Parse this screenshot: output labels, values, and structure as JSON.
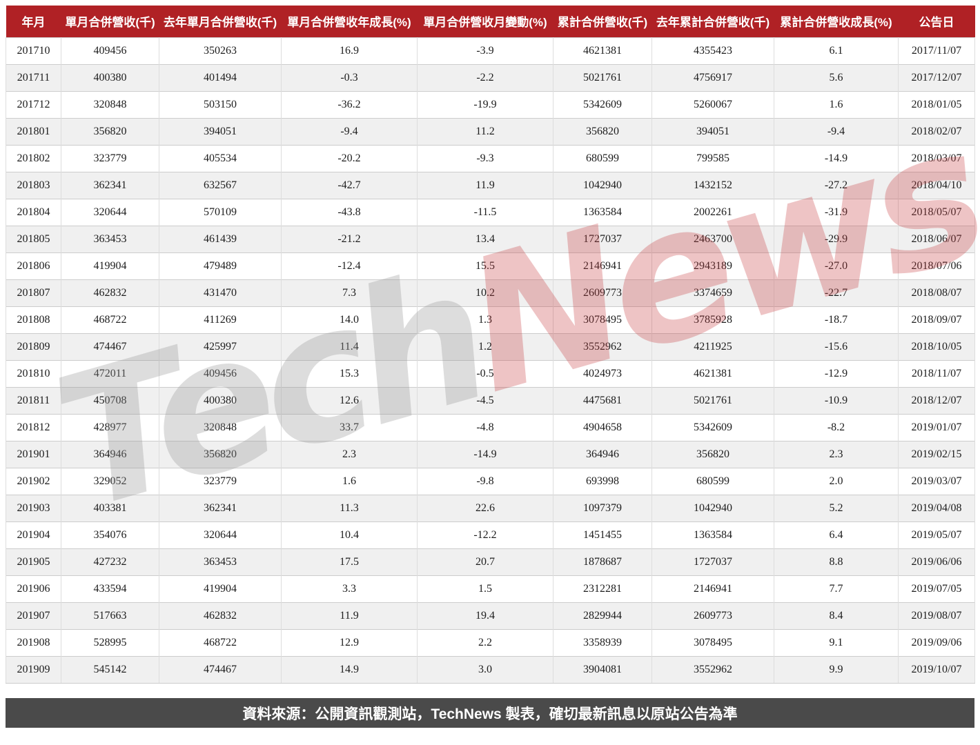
{
  "chart_data": {
    "type": "table",
    "title": "月合併營收表 (TechNews)",
    "columns": [
      "年月",
      "單月合併營收(千)",
      "去年單月合併營收(千)",
      "單月合併營收年成長(%)",
      "單月合併營收月變動(%)",
      "累計合併營收(千)",
      "去年累計合併營收(千)",
      "累計合併營收成長(%)",
      "公告日"
    ],
    "rows": [
      [
        "201710",
        "409456",
        "350263",
        "16.9",
        "-3.9",
        "4621381",
        "4355423",
        "6.1",
        "2017/11/07"
      ],
      [
        "201711",
        "400380",
        "401494",
        "-0.3",
        "-2.2",
        "5021761",
        "4756917",
        "5.6",
        "2017/12/07"
      ],
      [
        "201712",
        "320848",
        "503150",
        "-36.2",
        "-19.9",
        "5342609",
        "5260067",
        "1.6",
        "2018/01/05"
      ],
      [
        "201801",
        "356820",
        "394051",
        "-9.4",
        "11.2",
        "356820",
        "394051",
        "-9.4",
        "2018/02/07"
      ],
      [
        "201802",
        "323779",
        "405534",
        "-20.2",
        "-9.3",
        "680599",
        "799585",
        "-14.9",
        "2018/03/07"
      ],
      [
        "201803",
        "362341",
        "632567",
        "-42.7",
        "11.9",
        "1042940",
        "1432152",
        "-27.2",
        "2018/04/10"
      ],
      [
        "201804",
        "320644",
        "570109",
        "-43.8",
        "-11.5",
        "1363584",
        "2002261",
        "-31.9",
        "2018/05/07"
      ],
      [
        "201805",
        "363453",
        "461439",
        "-21.2",
        "13.4",
        "1727037",
        "2463700",
        "-29.9",
        "2018/06/07"
      ],
      [
        "201806",
        "419904",
        "479489",
        "-12.4",
        "15.5",
        "2146941",
        "2943189",
        "-27.0",
        "2018/07/06"
      ],
      [
        "201807",
        "462832",
        "431470",
        "7.3",
        "10.2",
        "2609773",
        "3374659",
        "-22.7",
        "2018/08/07"
      ],
      [
        "201808",
        "468722",
        "411269",
        "14.0",
        "1.3",
        "3078495",
        "3785928",
        "-18.7",
        "2018/09/07"
      ],
      [
        "201809",
        "474467",
        "425997",
        "11.4",
        "1.2",
        "3552962",
        "4211925",
        "-15.6",
        "2018/10/05"
      ],
      [
        "201810",
        "472011",
        "409456",
        "15.3",
        "-0.5",
        "4024973",
        "4621381",
        "-12.9",
        "2018/11/07"
      ],
      [
        "201811",
        "450708",
        "400380",
        "12.6",
        "-4.5",
        "4475681",
        "5021761",
        "-10.9",
        "2018/12/07"
      ],
      [
        "201812",
        "428977",
        "320848",
        "33.7",
        "-4.8",
        "4904658",
        "5342609",
        "-8.2",
        "2019/01/07"
      ],
      [
        "201901",
        "364946",
        "356820",
        "2.3",
        "-14.9",
        "364946",
        "356820",
        "2.3",
        "2019/02/15"
      ],
      [
        "201902",
        "329052",
        "323779",
        "1.6",
        "-9.8",
        "693998",
        "680599",
        "2.0",
        "2019/03/07"
      ],
      [
        "201903",
        "403381",
        "362341",
        "11.3",
        "22.6",
        "1097379",
        "1042940",
        "5.2",
        "2019/04/08"
      ],
      [
        "201904",
        "354076",
        "320644",
        "10.4",
        "-12.2",
        "1451455",
        "1363584",
        "6.4",
        "2019/05/07"
      ],
      [
        "201905",
        "427232",
        "363453",
        "17.5",
        "20.7",
        "1878687",
        "1727037",
        "8.8",
        "2019/06/06"
      ],
      [
        "201906",
        "433594",
        "419904",
        "3.3",
        "1.5",
        "2312281",
        "2146941",
        "7.7",
        "2019/07/05"
      ],
      [
        "201907",
        "517663",
        "462832",
        "11.9",
        "19.4",
        "2829944",
        "2609773",
        "8.4",
        "2019/08/07"
      ],
      [
        "201908",
        "528995",
        "468722",
        "12.9",
        "2.2",
        "3358939",
        "3078495",
        "9.1",
        "2019/09/06"
      ],
      [
        "201909",
        "545142",
        "474467",
        "14.9",
        "3.0",
        "3904081",
        "3552962",
        "9.9",
        "2019/10/07"
      ]
    ],
    "legend_position": "none",
    "grid": true
  },
  "watermark": {
    "part1": "Tech",
    "part2": "News"
  },
  "footer": {
    "text": "資料來源：公開資訊觀測站，TechNews 製表，確切最新訊息以原站公告為準"
  },
  "colors": {
    "header_bg": "#b02125",
    "row_alt_bg": "#f0f0f0",
    "row_bg": "#ffffff",
    "footer_bg": "#4a4a4a",
    "watermark_gray": "#969696",
    "watermark_red": "#c63c40"
  }
}
